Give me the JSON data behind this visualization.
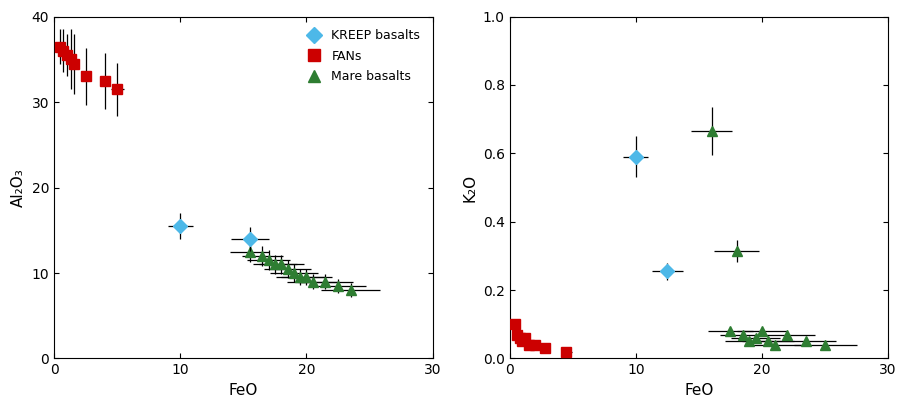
{
  "plot1": {
    "xlabel": "FeO",
    "ylabel": "Al₂O₃",
    "xlim": [
      0,
      30
    ],
    "ylim": [
      0,
      40
    ],
    "xticks": [
      0,
      10,
      20,
      30
    ],
    "yticks": [
      0,
      10,
      20,
      30,
      40
    ],
    "kreep": {
      "x": [
        10.0,
        15.5
      ],
      "y": [
        15.5,
        14.0
      ],
      "xerr": [
        1.0,
        1.5
      ],
      "yerr": [
        1.5,
        1.4
      ],
      "color": "#4db8e8",
      "marker": "D",
      "markersize": 7
    },
    "fans": {
      "x": [
        0.5,
        0.7,
        1.0,
        1.3,
        1.6,
        2.5,
        4.0,
        5.0
      ],
      "y": [
        36.5,
        36.0,
        35.5,
        35.0,
        34.5,
        33.0,
        32.5,
        31.5
      ],
      "xerr": [
        0.05,
        0.07,
        0.1,
        0.13,
        0.16,
        0.25,
        0.4,
        0.5
      ],
      "yerr": [
        2.0,
        2.5,
        2.5,
        3.5,
        3.5,
        3.3,
        3.3,
        3.1
      ],
      "color": "#cc0000",
      "marker": "s",
      "markersize": 7
    },
    "mare": {
      "x": [
        15.5,
        16.5,
        17.0,
        17.5,
        18.0,
        18.5,
        19.0,
        19.5,
        20.0,
        20.5,
        21.5,
        22.5,
        23.5
      ],
      "y": [
        12.5,
        12.0,
        11.5,
        11.0,
        11.0,
        10.5,
        10.0,
        9.5,
        9.5,
        9.0,
        9.0,
        8.5,
        8.0
      ],
      "xerr": [
        1.55,
        1.65,
        1.7,
        1.75,
        1.8,
        1.85,
        1.9,
        1.95,
        2.0,
        2.05,
        2.15,
        2.25,
        2.35
      ],
      "yerr": [
        1.25,
        1.2,
        1.15,
        1.1,
        1.1,
        1.05,
        1.0,
        0.95,
        0.95,
        0.9,
        0.9,
        0.85,
        0.8
      ],
      "color": "#2e7d32",
      "marker": "^",
      "markersize": 7
    }
  },
  "plot2": {
    "xlabel": "FeO",
    "ylabel": "K₂O",
    "xlim": [
      0,
      30
    ],
    "ylim": [
      0,
      1.0
    ],
    "xticks": [
      0,
      10,
      20,
      30
    ],
    "yticks": [
      0.0,
      0.2,
      0.4,
      0.6,
      0.8,
      1.0
    ],
    "kreep": {
      "x": [
        10.0,
        12.5
      ],
      "y": [
        0.59,
        0.255
      ],
      "xerr": [
        1.0,
        1.25
      ],
      "yerr": [
        0.06,
        0.025
      ],
      "color": "#4db8e8",
      "marker": "D",
      "markersize": 7
    },
    "fans": {
      "x": [
        0.4,
        0.6,
        0.8,
        1.0,
        1.2,
        1.5,
        2.0,
        2.8,
        4.5
      ],
      "y": [
        0.1,
        0.07,
        0.06,
        0.05,
        0.06,
        0.04,
        0.04,
        0.03,
        0.02
      ],
      "xerr": [
        0.04,
        0.06,
        0.08,
        0.1,
        0.12,
        0.15,
        0.2,
        0.28,
        0.45
      ],
      "yerr": [
        0.01,
        0.007,
        0.006,
        0.005,
        0.006,
        0.004,
        0.004,
        0.003,
        0.002
      ],
      "color": "#cc0000",
      "marker": "s",
      "markersize": 7
    },
    "mare": {
      "x": [
        16.0,
        18.0,
        17.5,
        18.5,
        19.0,
        19.5,
        20.0,
        20.5,
        21.0,
        22.0,
        23.5,
        25.0
      ],
      "y": [
        0.665,
        0.315,
        0.08,
        0.07,
        0.05,
        0.06,
        0.08,
        0.05,
        0.04,
        0.07,
        0.05,
        0.04
      ],
      "xerr": [
        1.6,
        1.8,
        1.75,
        1.85,
        1.9,
        1.95,
        2.0,
        2.05,
        2.1,
        2.2,
        2.35,
        2.5
      ],
      "yerr": [
        0.07,
        0.032,
        0.008,
        0.007,
        0.005,
        0.006,
        0.008,
        0.005,
        0.004,
        0.007,
        0.005,
        0.004
      ],
      "color": "#2e7d32",
      "marker": "^",
      "markersize": 7
    }
  },
  "legend": {
    "kreep_label": "KREEP basalts",
    "fans_label": "FANs",
    "mare_label": "Mare basalts",
    "kreep_color": "#4db8e8",
    "fans_color": "#cc0000",
    "mare_color": "#2e7d32"
  },
  "figsize": [
    9.08,
    4.09
  ],
  "dpi": 100
}
